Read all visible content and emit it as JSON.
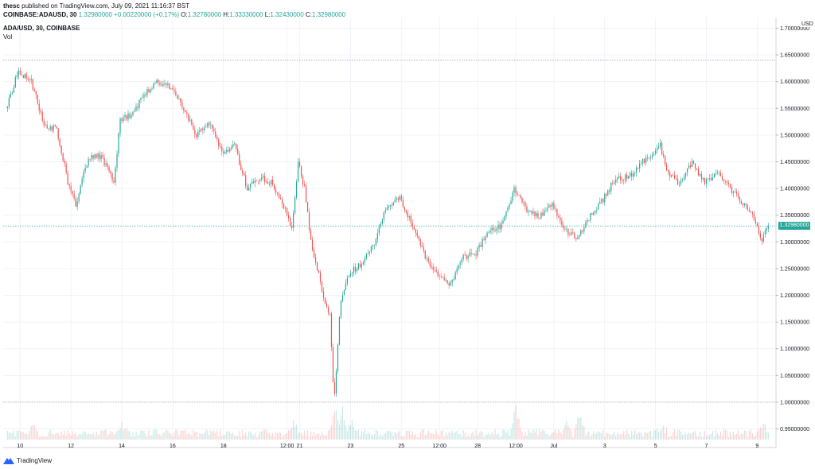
{
  "header": {
    "user": "thesc",
    "published": "published on TradingView.com, July 09, 2021 11:16:37 BST",
    "symbol_line": "COINBASE:ADAUSD, 30",
    "change": "+0.00220000 (+0.17%)",
    "ohlc": [
      {
        "label": "O:",
        "value": "1.32780000"
      },
      {
        "label": "H:",
        "value": "1.33330000"
      },
      {
        "label": "L:",
        "value": "1.32430000"
      },
      {
        "label": "C:",
        "value": "1.32980000"
      }
    ],
    "legend_title": "ADA/USD, 30, COINBASE",
    "legend_vol": "Vol"
  },
  "footer": {
    "brand": "TradingView"
  },
  "colors": {
    "up": "#26a69a",
    "down": "#ef5350",
    "grid": "#f0f3fa",
    "axis": "#9598a1"
  },
  "chart_data": {
    "type": "candlestick",
    "title": "ADA/USD, 30, COINBASE",
    "currency": "USD",
    "last_price_label": "1.32980000",
    "last_price": 1.3298,
    "ylim": [
      0.93,
      1.72
    ],
    "y_ticks": [
      "1.70000000",
      "1.65000000",
      "1.60000000",
      "1.55000000",
      "1.50000000",
      "1.45000000",
      "1.40000000",
      "1.35000000",
      "1.30000000",
      "1.25000000",
      "1.20000000",
      "1.15000000",
      "1.10000000",
      "1.05000000",
      "1.00000000",
      "0.95000000"
    ],
    "x_ticks": [
      "10",
      "12",
      "14",
      "16",
      "18",
      "12:00",
      "21",
      "23",
      "25",
      "12:00",
      "28",
      "12:00",
      "Jul",
      "3",
      "5",
      "7",
      "9"
    ],
    "horizontal_lines": [
      1.64,
      1.0
    ],
    "price_path": [
      {
        "x": "Jun 9 12:00",
        "y": 1.55
      },
      {
        "x": "Jun 10 00:00",
        "y": 1.62
      },
      {
        "x": "Jun 10 12:00",
        "y": 1.6
      },
      {
        "x": "Jun 11 00:00",
        "y": 1.52
      },
      {
        "x": "Jun 11 12:00",
        "y": 1.51
      },
      {
        "x": "Jun 12 00:00",
        "y": 1.4
      },
      {
        "x": "Jun 12 06:00",
        "y": 1.37
      },
      {
        "x": "Jun 12 18:00",
        "y": 1.46
      },
      {
        "x": "Jun 13 06:00",
        "y": 1.46
      },
      {
        "x": "Jun 13 18:00",
        "y": 1.41
      },
      {
        "x": "Jun 14 00:00",
        "y": 1.53
      },
      {
        "x": "Jun 14 12:00",
        "y": 1.54
      },
      {
        "x": "Jun 15 00:00",
        "y": 1.58
      },
      {
        "x": "Jun 15 12:00",
        "y": 1.6
      },
      {
        "x": "Jun 16 00:00",
        "y": 1.59
      },
      {
        "x": "Jun 16 12:00",
        "y": 1.55
      },
      {
        "x": "Jun 17 00:00",
        "y": 1.5
      },
      {
        "x": "Jun 17 12:00",
        "y": 1.52
      },
      {
        "x": "Jun 18 00:00",
        "y": 1.47
      },
      {
        "x": "Jun 18 12:00",
        "y": 1.48
      },
      {
        "x": "Jun 19 00:00",
        "y": 1.4
      },
      {
        "x": "Jun 19 12:00",
        "y": 1.42
      },
      {
        "x": "Jun 20 00:00",
        "y": 1.41
      },
      {
        "x": "Jun 20 12:00",
        "y": 1.36
      },
      {
        "x": "Jun 20 18:00",
        "y": 1.32
      },
      {
        "x": "Jun 21 00:00",
        "y": 1.45
      },
      {
        "x": "Jun 21 06:00",
        "y": 1.4
      },
      {
        "x": "Jun 21 12:00",
        "y": 1.3
      },
      {
        "x": "Jun 22 00:00",
        "y": 1.2
      },
      {
        "x": "Jun 22 06:00",
        "y": 1.16
      },
      {
        "x": "Jun 22 10:00",
        "y": 1.0
      },
      {
        "x": "Jun 22 16:00",
        "y": 1.19
      },
      {
        "x": "Jun 23 00:00",
        "y": 1.24
      },
      {
        "x": "Jun 23 12:00",
        "y": 1.26
      },
      {
        "x": "Jun 24 00:00",
        "y": 1.3
      },
      {
        "x": "Jun 24 12:00",
        "y": 1.37
      },
      {
        "x": "Jun 25 00:00",
        "y": 1.38
      },
      {
        "x": "Jun 25 12:00",
        "y": 1.33
      },
      {
        "x": "Jun 26 00:00",
        "y": 1.27
      },
      {
        "x": "Jun 26 12:00",
        "y": 1.24
      },
      {
        "x": "Jun 27 00:00",
        "y": 1.22
      },
      {
        "x": "Jun 27 12:00",
        "y": 1.27
      },
      {
        "x": "Jun 28 00:00",
        "y": 1.28
      },
      {
        "x": "Jun 28 12:00",
        "y": 1.32
      },
      {
        "x": "Jun 29 00:00",
        "y": 1.33
      },
      {
        "x": "Jun 29 12:00",
        "y": 1.4
      },
      {
        "x": "Jun 30 00:00",
        "y": 1.36
      },
      {
        "x": "Jun 30 12:00",
        "y": 1.35
      },
      {
        "x": "Jul 1 00:00",
        "y": 1.37
      },
      {
        "x": "Jul 1 12:00",
        "y": 1.32
      },
      {
        "x": "Jul 2 00:00",
        "y": 1.31
      },
      {
        "x": "Jul 2 12:00",
        "y": 1.35
      },
      {
        "x": "Jul 3 00:00",
        "y": 1.38
      },
      {
        "x": "Jul 3 12:00",
        "y": 1.42
      },
      {
        "x": "Jul 4 00:00",
        "y": 1.42
      },
      {
        "x": "Jul 4 12:00",
        "y": 1.45
      },
      {
        "x": "Jul 5 00:00",
        "y": 1.46
      },
      {
        "x": "Jul 5 06:00",
        "y": 1.48
      },
      {
        "x": "Jul 5 12:00",
        "y": 1.43
      },
      {
        "x": "Jul 6 00:00",
        "y": 1.41
      },
      {
        "x": "Jul 6 12:00",
        "y": 1.45
      },
      {
        "x": "Jul 7 00:00",
        "y": 1.41
      },
      {
        "x": "Jul 7 12:00",
        "y": 1.43
      },
      {
        "x": "Jul 8 00:00",
        "y": 1.4
      },
      {
        "x": "Jul 8 12:00",
        "y": 1.37
      },
      {
        "x": "Jul 9 00:00",
        "y": 1.34
      },
      {
        "x": "Jul 9 06:00",
        "y": 1.3
      },
      {
        "x": "Jul 9 11:00",
        "y": 1.3298
      }
    ],
    "volume_spikes": [
      {
        "x": "Jun 10 12:00",
        "value": 0.25
      },
      {
        "x": "Jun 14 00:00",
        "value": 0.35
      },
      {
        "x": "Jun 20 18:00",
        "value": 0.45
      },
      {
        "x": "Jun 22 10:00",
        "value": 1.0
      },
      {
        "x": "Jun 22 16:00",
        "value": 0.95
      },
      {
        "x": "Jun 23 00:00",
        "value": 0.5
      },
      {
        "x": "Jun 29 12:00",
        "value": 0.9
      },
      {
        "x": "Jul 1 12:00",
        "value": 0.4
      },
      {
        "x": "Jul 2 00:00",
        "value": 0.7
      },
      {
        "x": "Jul 5 06:00",
        "value": 0.35
      },
      {
        "x": "Jul 9 06:00",
        "value": 0.3
      }
    ]
  }
}
